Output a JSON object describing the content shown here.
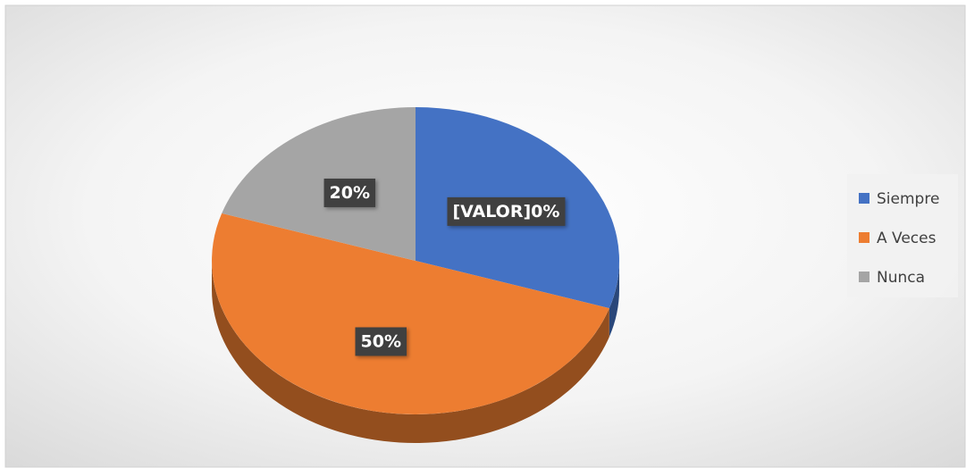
{
  "chart_data": {
    "type": "pie",
    "categories": [
      "Siempre",
      "A Veces",
      "Nunca"
    ],
    "values": [
      30,
      50,
      20
    ],
    "value_labels": [
      "[VALOR]0%",
      "50%",
      "20%"
    ],
    "colors": [
      "#4472c4",
      "#ed7d31",
      "#a5a5a5"
    ],
    "legend": "right"
  }
}
